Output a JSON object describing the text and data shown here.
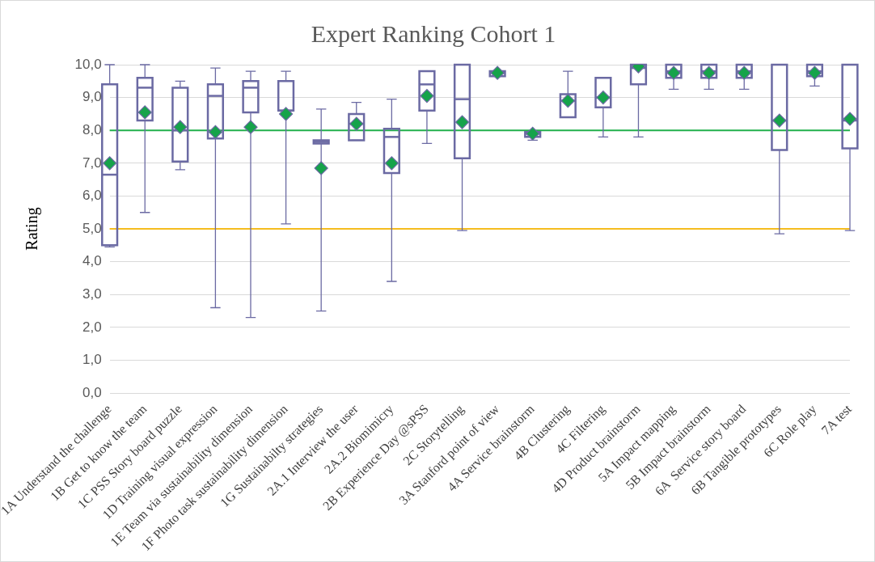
{
  "chart_data": {
    "type": "box",
    "title": "Expert Ranking Cohort 1",
    "ylabel": "Rating",
    "categories": [
      "1A Understand the challenge",
      "1B Get to know the team",
      "1C PSS Story board puzzle",
      "1D Training visual expression",
      "1E Team via sustainability dimension",
      "1F Photo task sustainability dimension",
      "1G Sustainabilty strategies",
      "2A.1 Interview the user",
      "2A.2 Biomimicry",
      "2B Experience Day @sPSS",
      "2C Storytelling",
      "3A Stanford point of view",
      "4A Service brainstorm",
      "4B Clustering",
      "4C Filtering",
      "4D Product brainstorm",
      "5A Impact mapping",
      "5B Impact brainstorm",
      "6A  Service story board",
      "6B Tangible prototypes",
      "6C Role play",
      "7A test"
    ],
    "color": "#6b6aa3",
    "boxes": [
      {
        "low": 4.45,
        "q1": 4.5,
        "median": 6.65,
        "q3": 9.4,
        "high": 10,
        "mean": 7.0
      },
      {
        "low": 5.5,
        "q1": 8.3,
        "median": 9.3,
        "q3": 9.6,
        "high": 10,
        "mean": 8.55
      },
      {
        "low": 6.8,
        "q1": 7.05,
        "median": 8.0,
        "q3": 9.3,
        "high": 9.5,
        "mean": 8.1
      },
      {
        "low": 2.6,
        "q1": 7.75,
        "median": 9.05,
        "q3": 9.4,
        "high": 9.9,
        "mean": 7.95
      },
      {
        "low": 2.3,
        "q1": 8.55,
        "median": 9.3,
        "q3": 9.5,
        "high": 9.8,
        "mean": 8.1
      },
      {
        "low": 5.15,
        "q1": 8.6,
        "median": 8.6,
        "q3": 9.5,
        "high": 9.8,
        "mean": 8.5
      },
      {
        "low": 2.5,
        "q1": 7.6,
        "median": 7.65,
        "q3": 7.7,
        "high": 8.65,
        "mean": 6.85
      },
      {
        "low": 7.7,
        "q1": 7.7,
        "median": 8.2,
        "q3": 8.5,
        "high": 8.85,
        "mean": 8.2
      },
      {
        "low": 3.4,
        "q1": 6.7,
        "median": 7.8,
        "q3": 8.05,
        "high": 8.95,
        "mean": 7.0
      },
      {
        "low": 7.6,
        "q1": 8.6,
        "median": 9.4,
        "q3": 9.8,
        "high": 9.8,
        "mean": 9.05
      },
      {
        "low": 4.95,
        "q1": 7.15,
        "median": 8.95,
        "q3": 10,
        "high": 10,
        "mean": 8.25
      },
      {
        "low": 9.65,
        "q1": 9.65,
        "median": 9.75,
        "q3": 9.8,
        "high": 9.8,
        "mean": 9.75
      },
      {
        "low": 7.7,
        "q1": 7.8,
        "median": 7.9,
        "q3": 7.95,
        "high": 7.95,
        "mean": 7.9
      },
      {
        "low": 8.4,
        "q1": 8.4,
        "median": 8.9,
        "q3": 9.1,
        "high": 9.8,
        "mean": 8.9
      },
      {
        "low": 7.8,
        "q1": 8.7,
        "median": 9.0,
        "q3": 9.6,
        "high": 9.6,
        "mean": 9.0
      },
      {
        "low": 7.8,
        "q1": 9.4,
        "median": 9.9,
        "q3": 10,
        "high": 10,
        "mean": 9.95
      },
      {
        "low": 9.25,
        "q1": 9.6,
        "median": 9.8,
        "q3": 10,
        "high": 10,
        "mean": 9.75
      },
      {
        "low": 9.25,
        "q1": 9.6,
        "median": 9.8,
        "q3": 10,
        "high": 10,
        "mean": 9.75
      },
      {
        "low": 9.25,
        "q1": 9.6,
        "median": 9.8,
        "q3": 10,
        "high": 10,
        "mean": 9.75
      },
      {
        "low": 4.85,
        "q1": 7.4,
        "median": 8.3,
        "q3": 10,
        "high": 10,
        "mean": 8.3
      },
      {
        "low": 9.35,
        "q1": 9.65,
        "median": 9.8,
        "q3": 10,
        "high": 10,
        "mean": 9.75
      },
      {
        "low": 4.95,
        "q1": 7.45,
        "median": 8.3,
        "q3": 10,
        "high": 10,
        "mean": 8.35
      }
    ],
    "ylim": [
      0,
      10
    ],
    "yticks": [
      {
        "value": 0,
        "label": "0,0"
      },
      {
        "value": 1,
        "label": "1,0"
      },
      {
        "value": 2,
        "label": "2,0"
      },
      {
        "value": 3,
        "label": "3,0"
      },
      {
        "value": 4,
        "label": "4,0"
      },
      {
        "value": 5,
        "label": "5,0"
      },
      {
        "value": 6,
        "label": "6,0"
      },
      {
        "value": 7,
        "label": "7,0"
      },
      {
        "value": 8,
        "label": "8,0"
      },
      {
        "value": 9,
        "label": "9,0"
      },
      {
        "value": 10,
        "label": "10,0"
      }
    ],
    "grid": "y",
    "marker": "diamond",
    "ref_lines": [
      {
        "axis": "y",
        "value": 8,
        "color": "#22b04c"
      },
      {
        "axis": "y",
        "value": 5,
        "color": "#f5bd1f"
      }
    ]
  }
}
